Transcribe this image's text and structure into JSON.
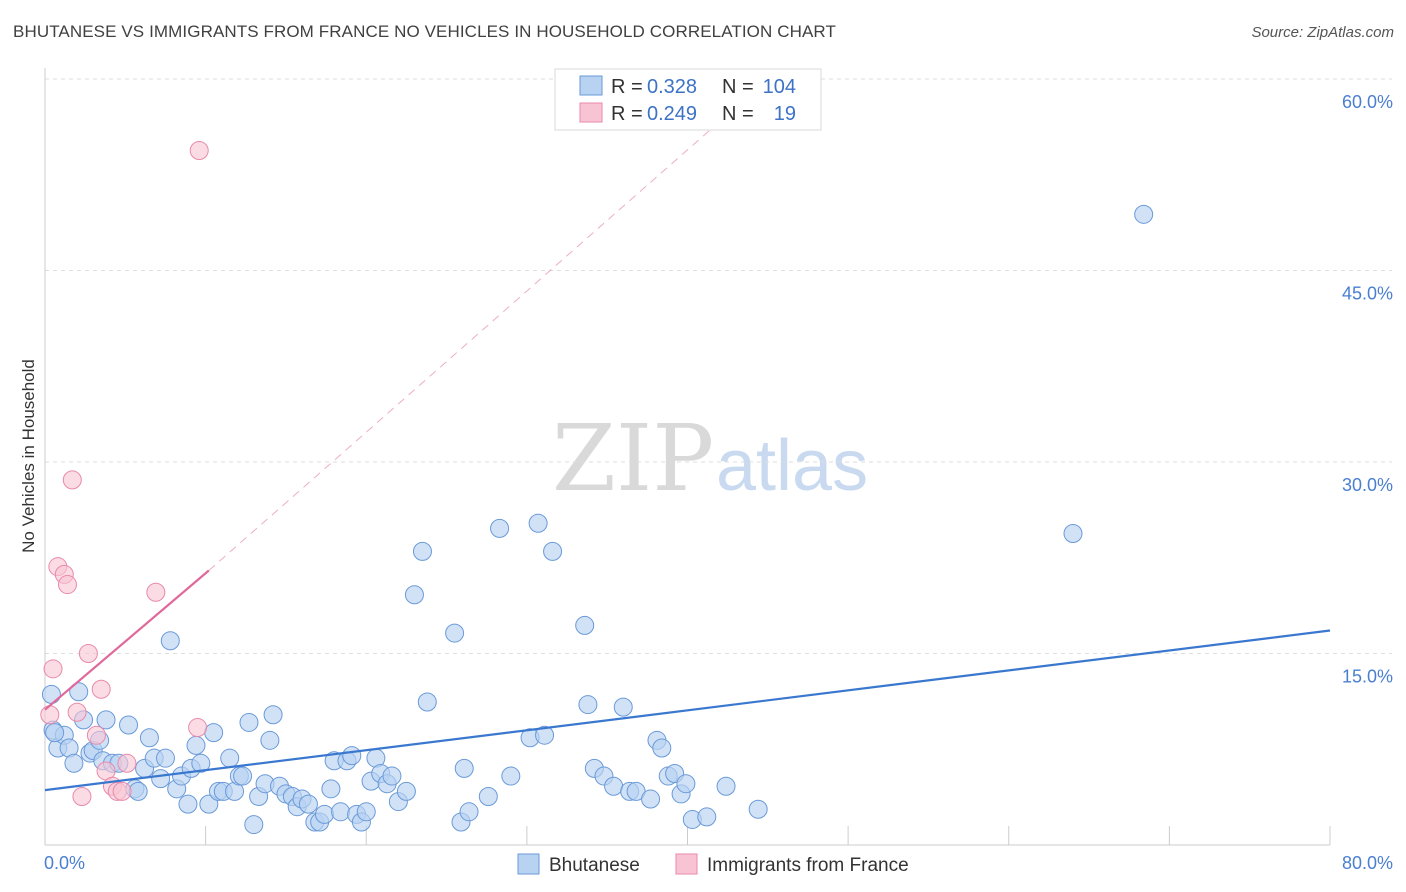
{
  "header": {
    "title": "BHUTANESE VS IMMIGRANTS FROM FRANCE NO VEHICLES IN HOUSEHOLD CORRELATION CHART",
    "source": "Source: ZipAtlas.com"
  },
  "watermark": {
    "zip": "ZIP",
    "atlas": "atlas"
  },
  "legend": {
    "rows": [
      {
        "r_label": "R = ",
        "r_value": "0.328",
        "n_label": "N = ",
        "n_value": "104"
      },
      {
        "r_label": "R = ",
        "r_value": "0.249",
        "n_label": "N = ",
        "n_value": "19"
      }
    ]
  },
  "colors": {
    "blue_fill": "#b8d2f2",
    "blue_stroke": "#6a9ad8",
    "blue_line": "#3a78d0",
    "pink_fill": "#f8c4d4",
    "pink_stroke": "#e88aaa",
    "pink_line": "#e0689a",
    "grid": "#dddddd",
    "axis": "#cccccc"
  },
  "chart_data": {
    "type": "scatter",
    "title": "BHUTANESE VS IMMIGRANTS FROM FRANCE NO VEHICLES IN HOUSEHOLD CORRELATION CHART",
    "xlabel": "",
    "ylabel": "No Vehicles in Household",
    "xlim": [
      0,
      80
    ],
    "ylim": [
      0,
      60
    ],
    "x_tick_labels": [
      "0.0%",
      "80.0%"
    ],
    "y_ticks": [
      15,
      30,
      45,
      60
    ],
    "y_tick_labels": [
      "15.0%",
      "30.0%",
      "45.0%",
      "60.0%"
    ],
    "grid": true,
    "legend_position": "top-center",
    "series": [
      {
        "name": "Bhutanese",
        "color": "#b8d2f2",
        "r": 0.328,
        "n": 104,
        "trend": {
          "x": [
            0,
            80
          ],
          "y": [
            4.3,
            16.8
          ]
        },
        "points": [
          [
            0.4,
            11.8
          ],
          [
            0.5,
            9.0
          ],
          [
            0.8,
            7.6
          ],
          [
            1.2,
            8.6
          ],
          [
            1.5,
            7.6
          ],
          [
            1.8,
            6.4
          ],
          [
            2.1,
            12.0
          ],
          [
            2.4,
            9.8
          ],
          [
            2.8,
            7.2
          ],
          [
            3.0,
            7.4
          ],
          [
            3.4,
            8.2
          ],
          [
            3.6,
            6.6
          ],
          [
            3.8,
            9.8
          ],
          [
            4.2,
            6.4
          ],
          [
            4.6,
            6.4
          ],
          [
            5.2,
            9.4
          ],
          [
            5.6,
            4.4
          ],
          [
            5.8,
            4.2
          ],
          [
            6.2,
            6.0
          ],
          [
            6.5,
            8.4
          ],
          [
            6.8,
            6.8
          ],
          [
            7.2,
            5.2
          ],
          [
            7.5,
            6.8
          ],
          [
            7.8,
            16.0
          ],
          [
            8.2,
            4.4
          ],
          [
            8.5,
            5.4
          ],
          [
            8.9,
            3.2
          ],
          [
            9.1,
            6.0
          ],
          [
            9.4,
            7.8
          ],
          [
            9.7,
            6.4
          ],
          [
            10.2,
            3.2
          ],
          [
            10.5,
            8.8
          ],
          [
            10.8,
            4.2
          ],
          [
            11.1,
            4.2
          ],
          [
            11.5,
            6.8
          ],
          [
            11.8,
            4.2
          ],
          [
            12.1,
            5.4
          ],
          [
            12.3,
            5.4
          ],
          [
            12.7,
            9.6
          ],
          [
            13.0,
            1.6
          ],
          [
            13.3,
            3.8
          ],
          [
            13.7,
            4.8
          ],
          [
            14.0,
            8.2
          ],
          [
            14.2,
            10.2
          ],
          [
            14.6,
            4.6
          ],
          [
            15.0,
            4.0
          ],
          [
            15.4,
            3.8
          ],
          [
            15.7,
            3.0
          ],
          [
            16.0,
            3.6
          ],
          [
            16.4,
            3.2
          ],
          [
            16.8,
            1.8
          ],
          [
            17.1,
            1.8
          ],
          [
            17.4,
            2.4
          ],
          [
            17.8,
            4.4
          ],
          [
            18.0,
            6.6
          ],
          [
            18.4,
            2.6
          ],
          [
            18.8,
            6.6
          ],
          [
            19.1,
            7.0
          ],
          [
            19.4,
            2.4
          ],
          [
            19.7,
            1.8
          ],
          [
            20.0,
            2.6
          ],
          [
            20.3,
            5.0
          ],
          [
            20.6,
            6.8
          ],
          [
            20.9,
            5.6
          ],
          [
            21.3,
            4.8
          ],
          [
            21.6,
            5.4
          ],
          [
            22.0,
            3.4
          ],
          [
            22.5,
            4.2
          ],
          [
            23.0,
            19.6
          ],
          [
            23.5,
            23.0
          ],
          [
            23.8,
            11.2
          ],
          [
            25.5,
            16.6
          ],
          [
            25.9,
            1.8
          ],
          [
            26.1,
            6.0
          ],
          [
            26.4,
            2.6
          ],
          [
            27.6,
            3.8
          ],
          [
            28.3,
            24.8
          ],
          [
            29.0,
            5.4
          ],
          [
            30.2,
            8.4
          ],
          [
            30.7,
            25.2
          ],
          [
            31.1,
            8.6
          ],
          [
            31.6,
            23.0
          ],
          [
            33.6,
            17.2
          ],
          [
            33.8,
            11.0
          ],
          [
            34.2,
            6.0
          ],
          [
            34.8,
            5.4
          ],
          [
            35.4,
            4.6
          ],
          [
            36.0,
            10.8
          ],
          [
            36.4,
            4.2
          ],
          [
            36.8,
            4.2
          ],
          [
            37.7,
            3.6
          ],
          [
            38.1,
            8.2
          ],
          [
            38.4,
            7.6
          ],
          [
            38.8,
            5.4
          ],
          [
            39.2,
            5.6
          ],
          [
            39.6,
            4.0
          ],
          [
            39.9,
            4.8
          ],
          [
            40.3,
            2.0
          ],
          [
            41.2,
            2.2
          ],
          [
            42.4,
            4.6
          ],
          [
            44.4,
            2.8
          ],
          [
            64.0,
            24.4
          ],
          [
            68.4,
            49.4
          ],
          [
            0.6,
            8.8
          ]
        ]
      },
      {
        "name": "Immigrants from France",
        "color": "#f8c4d4",
        "r": 0.249,
        "n": 19,
        "trend": {
          "x": [
            0,
            10.2
          ],
          "y": [
            10.6,
            21.5
          ],
          "dashed_to": {
            "x": 41.4,
            "y": 56.0
          }
        },
        "points": [
          [
            0.3,
            10.2
          ],
          [
            0.5,
            13.8
          ],
          [
            0.8,
            21.8
          ],
          [
            1.2,
            21.2
          ],
          [
            1.4,
            20.4
          ],
          [
            1.7,
            28.6
          ],
          [
            2.0,
            10.4
          ],
          [
            2.3,
            3.8
          ],
          [
            2.7,
            15.0
          ],
          [
            3.2,
            8.6
          ],
          [
            3.5,
            12.2
          ],
          [
            3.8,
            5.8
          ],
          [
            4.2,
            4.6
          ],
          [
            4.5,
            4.2
          ],
          [
            4.8,
            4.2
          ],
          [
            5.1,
            6.4
          ],
          [
            6.9,
            19.8
          ],
          [
            9.5,
            9.2
          ],
          [
            9.6,
            54.4
          ]
        ]
      }
    ]
  },
  "bottom_legend": {
    "items": [
      {
        "label": "Bhutanese"
      },
      {
        "label": "Immigrants from France"
      }
    ]
  }
}
